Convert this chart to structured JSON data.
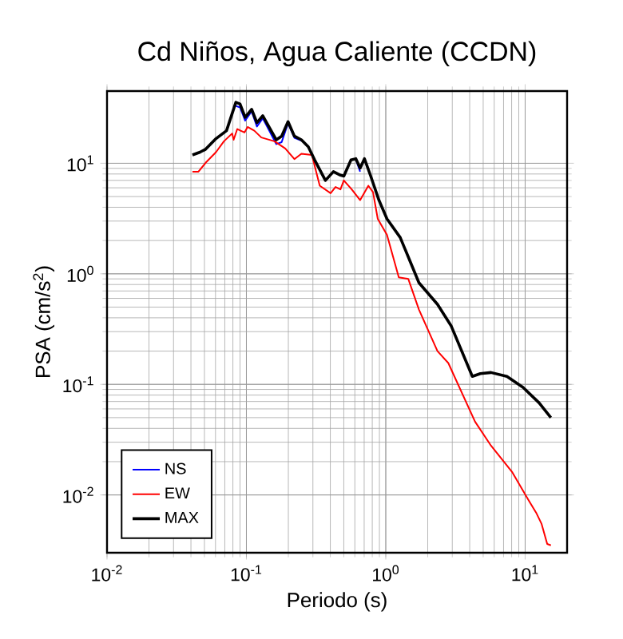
{
  "chart_data": {
    "type": "line",
    "title": "Cd Niños, Agua Caliente (CCDN)",
    "xlabel": "Periodo (s)",
    "ylabel": "PSA (cm/s$^{2}$)",
    "log": "xy",
    "grid": true,
    "legend": "bottom left",
    "xlim": [
      0.01,
      20
    ],
    "ylim": [
      0.003,
      45
    ],
    "xticks": [
      {
        "value": 0.01,
        "label": "10$^{-2}$"
      },
      {
        "value": 0.1,
        "label": "10$^{-1}$"
      },
      {
        "value": 1,
        "label": "10$^{0}$"
      },
      {
        "value": 10,
        "label": "10$^{1}$"
      }
    ],
    "yticks": [
      {
        "value": 0.01,
        "label": "10$^{-2}$"
      },
      {
        "value": 0.1,
        "label": "10$^{-1}$"
      },
      {
        "value": 1,
        "label": "10$^{0}$"
      },
      {
        "value": 10,
        "label": "10$^{1}$"
      }
    ],
    "series": [
      {
        "name": "NS",
        "color": "#0000ff",
        "x": [
          0.084,
          0.09,
          0.098,
          0.109,
          0.119,
          0.131,
          0.164,
          0.179,
          0.199,
          0.221,
          0.248,
          0.421,
          0.61,
          0.655
        ],
        "values": [
          33.0,
          32.0,
          24.3,
          29.5,
          21.5,
          25.5,
          14.9,
          15.5,
          23.0,
          17.0,
          16.0,
          null,
          10.8,
          8.4
        ]
      },
      {
        "name": "EW",
        "color": "#ff0000",
        "x": [
          0.041,
          0.0453,
          0.051,
          0.0605,
          0.069,
          0.079,
          0.081,
          0.086,
          0.097,
          0.102,
          0.114,
          0.128,
          0.159,
          0.19,
          0.221,
          0.248,
          0.295,
          0.336,
          0.402,
          0.436,
          0.473,
          0.5,
          0.57,
          0.655,
          0.75,
          0.81,
          0.876,
          1.02,
          1.24,
          1.45,
          1.73,
          2.35,
          2.81,
          4.37,
          5.69,
          8.1,
          10.5,
          12.0,
          13.1,
          14.4,
          15.3
        ],
        "values": [
          8.4,
          8.4,
          10.1,
          12.6,
          15.8,
          18.6,
          16.3,
          20.4,
          19.0,
          21.3,
          19.7,
          17.1,
          15.8,
          13.6,
          10.9,
          12.2,
          11.9,
          6.27,
          5.36,
          6.1,
          5.8,
          7.0,
          5.8,
          4.64,
          6.27,
          5.48,
          3.14,
          2.25,
          0.93,
          0.9,
          0.475,
          0.2,
          0.156,
          0.046,
          0.0279,
          0.016,
          0.0091,
          0.0069,
          0.0055,
          0.0036,
          0.0035
        ]
      },
      {
        "name": "MAX",
        "color": "#000000",
        "x": [
          0.041,
          0.0465,
          0.051,
          0.0605,
          0.072,
          0.084,
          0.09,
          0.098,
          0.109,
          0.119,
          0.131,
          0.164,
          0.179,
          0.199,
          0.221,
          0.248,
          0.278,
          0.309,
          0.369,
          0.421,
          0.473,
          0.5,
          0.563,
          0.61,
          0.655,
          0.703,
          0.78,
          0.893,
          1.02,
          1.27,
          1.73,
          2.35,
          2.94,
          4.18,
          4.77,
          5.69,
          7.4,
          9.66,
          12.6,
          15.3
        ],
        "values": [
          11.9,
          12.6,
          13.4,
          16.7,
          19.7,
          35.6,
          34.4,
          26.0,
          30.8,
          23.3,
          26.9,
          16.3,
          17.6,
          23.8,
          17.6,
          16.3,
          14.1,
          10.7,
          7.0,
          8.4,
          7.8,
          7.65,
          10.7,
          11.0,
          9.05,
          11.0,
          7.65,
          4.64,
          3.14,
          2.13,
          0.83,
          0.53,
          0.34,
          0.118,
          0.125,
          0.128,
          0.118,
          0.094,
          0.068,
          0.05
        ]
      }
    ]
  }
}
